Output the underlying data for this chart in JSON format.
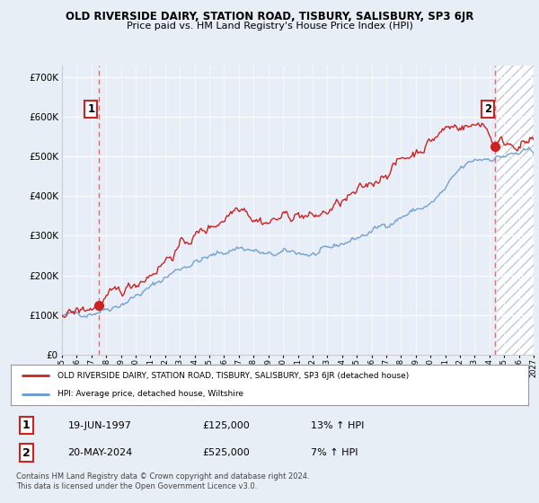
{
  "title": "OLD RIVERSIDE DAIRY, STATION ROAD, TISBURY, SALISBURY, SP3 6JR",
  "subtitle": "Price paid vs. HM Land Registry's House Price Index (HPI)",
  "ylabel_ticks": [
    "£0",
    "£100K",
    "£200K",
    "£300K",
    "£400K",
    "£500K",
    "£600K",
    "£700K"
  ],
  "ytick_vals": [
    0,
    100000,
    200000,
    300000,
    400000,
    500000,
    600000,
    700000
  ],
  "ylim": [
    0,
    730000
  ],
  "xlim": [
    1995,
    2027
  ],
  "bg_color": "#e8eef5",
  "plot_bg_color": "#e8eef8",
  "grid_color": "#ffffff",
  "hpi_line_color": "#6699cc",
  "price_line_color": "#cc2222",
  "dashed_line_color": "#ee6666",
  "marker_color": "#cc2222",
  "sale1_year": 1997.47,
  "sale1_price": 125000,
  "sale2_year": 2024.38,
  "sale2_price": 525000,
  "legend_label1": "OLD RIVERSIDE DAIRY, STATION ROAD, TISBURY, SALISBURY, SP3 6JR (detached house)",
  "legend_label2": "HPI: Average price, detached house, Wiltshire",
  "table_row1": [
    "1",
    "19-JUN-1997",
    "£125,000",
    "13% ↑ HPI"
  ],
  "table_row2": [
    "2",
    "20-MAY-2024",
    "£525,000",
    "7% ↑ HPI"
  ],
  "footer": "Contains HM Land Registry data © Crown copyright and database right 2024.\nThis data is licensed under the Open Government Licence v3.0.",
  "hatch_start": 2024.5
}
